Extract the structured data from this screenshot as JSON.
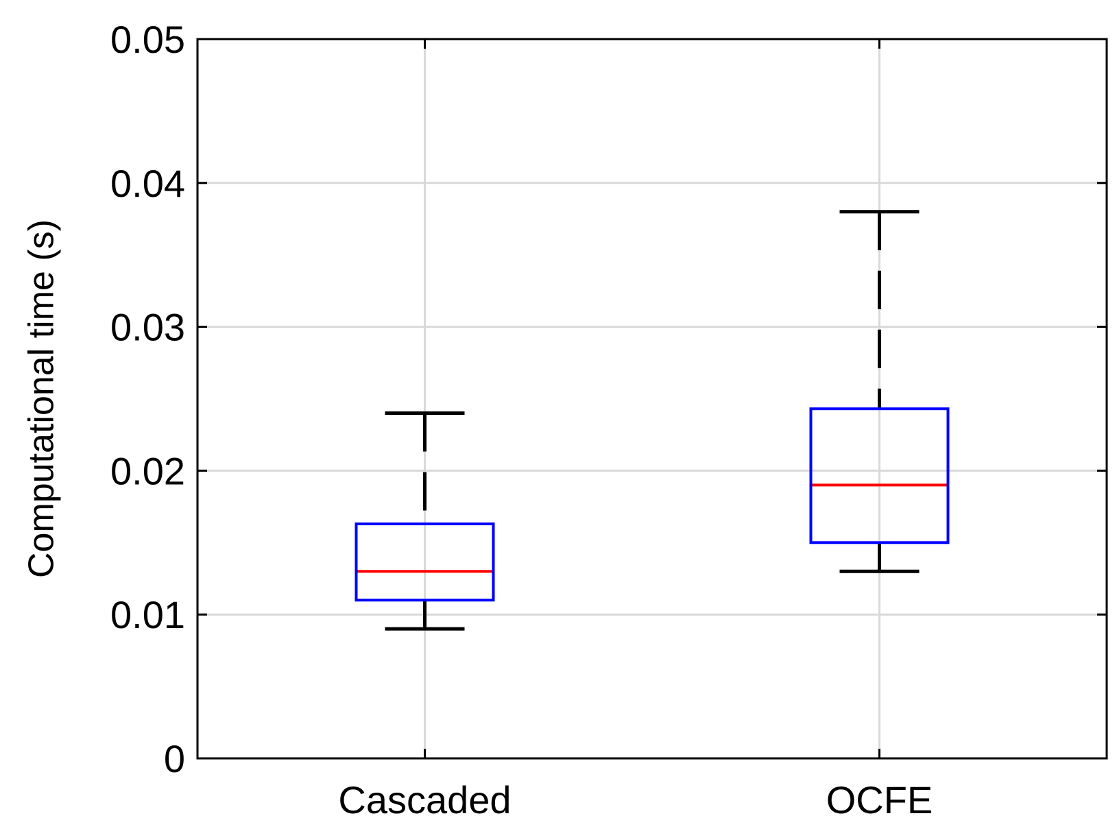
{
  "chart_data": {
    "type": "boxplot",
    "title": "",
    "xlabel": "",
    "ylabel": "Computational time (s)",
    "ylim": [
      0,
      0.05
    ],
    "yticks": [
      0,
      0.01,
      0.02,
      0.03,
      0.04,
      0.05
    ],
    "ytick_labels": [
      "0",
      "0.01",
      "0.02",
      "0.03",
      "0.04",
      "0.05"
    ],
    "grid": true,
    "categories": [
      "Cascaded",
      "OCFE"
    ],
    "boxes": [
      {
        "name": "Cascaded",
        "whisker_low": 0.009,
        "q1": 0.011,
        "median": 0.013,
        "q3": 0.0163,
        "whisker_high": 0.024
      },
      {
        "name": "OCFE",
        "whisker_low": 0.013,
        "q1": 0.015,
        "median": 0.019,
        "q3": 0.0243,
        "whisker_high": 0.038
      }
    ],
    "colors": {
      "box": "#0000ff",
      "median": "#ff0000",
      "whisker": "#000000",
      "grid": "#d9d9d9",
      "axis": "#000000"
    }
  }
}
